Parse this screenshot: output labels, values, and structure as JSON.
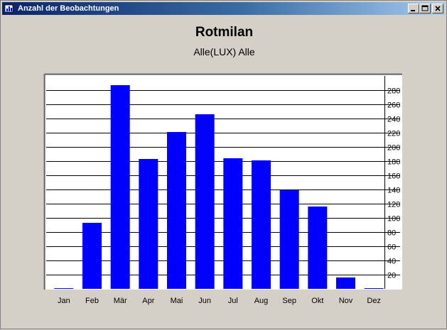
{
  "window": {
    "title": "Anzahl der Beobachtungen",
    "buttons": {
      "minimize": "minimize",
      "maximize": "maximize",
      "close": "close"
    }
  },
  "chart_data": {
    "type": "bar",
    "title": "Rotmilan",
    "subtitle": "Alle(LUX) Alle",
    "categories": [
      "Jan",
      "Feb",
      "Mär",
      "Apr",
      "Mai",
      "Jun",
      "Jul",
      "Aug",
      "Sep",
      "Okt",
      "Nov",
      "Dez"
    ],
    "values": [
      1,
      93,
      287,
      183,
      221,
      246,
      184,
      181,
      139,
      116,
      16,
      1
    ],
    "ylim": [
      0,
      300
    ],
    "yticks": [
      20,
      40,
      60,
      80,
      100,
      120,
      140,
      160,
      180,
      200,
      220,
      240,
      260,
      280
    ],
    "grid": true,
    "y_axis_side": "right",
    "bar_color": "#0000ff"
  }
}
